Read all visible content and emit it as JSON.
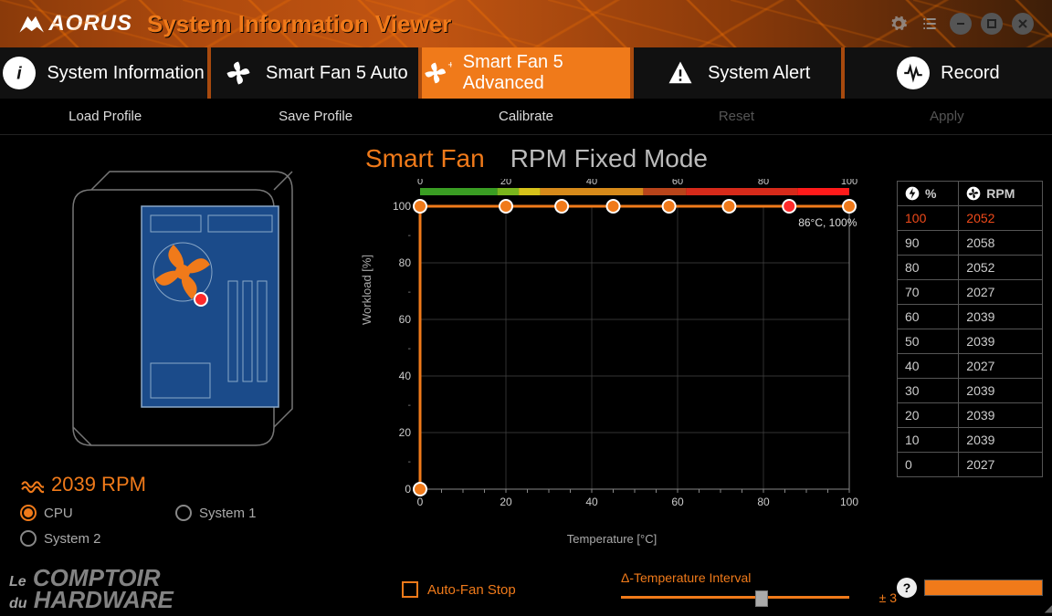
{
  "app": {
    "brand": "AORUS",
    "title": "System Information Viewer"
  },
  "header_icons": [
    "settings-icon",
    "list-icon",
    "minimize-icon",
    "maximize-icon",
    "close-icon"
  ],
  "tabs": [
    {
      "id": "sysinfo",
      "label": "System Information",
      "icon": "info-icon"
    },
    {
      "id": "smartfan-auto",
      "label": "Smart Fan 5 Auto",
      "icon": "fan-icon"
    },
    {
      "id": "smartfan-adv",
      "label": "Smart Fan 5 Advanced",
      "icon": "fan-plus-icon",
      "active": true
    },
    {
      "id": "sysalert",
      "label": "System Alert",
      "icon": "alert-icon"
    },
    {
      "id": "record",
      "label": "Record",
      "icon": "record-icon"
    }
  ],
  "subbar": [
    {
      "label": "Load Profile",
      "disabled": false
    },
    {
      "label": "Save Profile",
      "disabled": false
    },
    {
      "label": "Calibrate",
      "disabled": false
    },
    {
      "label": "Reset",
      "disabled": true
    },
    {
      "label": "Apply",
      "disabled": true
    }
  ],
  "fan": {
    "current_rpm_text": "2039 RPM",
    "sensors": [
      {
        "label": "CPU",
        "selected": true
      },
      {
        "label": "System 1",
        "selected": false
      },
      {
        "label": "System 2",
        "selected": false
      }
    ]
  },
  "modes": {
    "smart_label": "Smart Fan",
    "fixed_label": "RPM Fixed Mode",
    "active": "smart",
    "colors": {
      "active": "#f07a1a",
      "inactive": "#bbbbbb"
    }
  },
  "chart": {
    "type": "line",
    "xlabel": "Temperature [°C]",
    "ylabel": "Workload [%]",
    "xlim": [
      0,
      100
    ],
    "xtick_step": 20,
    "ylim": [
      0,
      100
    ],
    "ytick_step": 20,
    "grid_color": "#444444",
    "axis_color": "#888888",
    "line_color": "#f07a1a",
    "line_width": 3,
    "node_radius": 7,
    "node_fill": "#f07a1a",
    "node_stroke": "#ffffff",
    "highlight_fill": "#ff2a2a",
    "points": [
      {
        "x": 0,
        "y": 0
      },
      {
        "x": 0,
        "y": 100
      },
      {
        "x": 20,
        "y": 100
      },
      {
        "x": 33,
        "y": 100
      },
      {
        "x": 45,
        "y": 100
      },
      {
        "x": 58,
        "y": 100
      },
      {
        "x": 72,
        "y": 100
      },
      {
        "x": 86,
        "y": 100,
        "highlight": true
      },
      {
        "x": 100,
        "y": 100
      }
    ],
    "readout": "86°C, 100%",
    "heat_bar": [
      {
        "from": 0,
        "to": 18,
        "color": "#3a9d23"
      },
      {
        "from": 18,
        "to": 23,
        "color": "#7ab51d"
      },
      {
        "from": 23,
        "to": 28,
        "color": "#d6c21a"
      },
      {
        "from": 28,
        "to": 52,
        "color": "#d68a1a"
      },
      {
        "from": 52,
        "to": 62,
        "color": "#b8441a"
      },
      {
        "from": 62,
        "to": 88,
        "color": "#d62a1a"
      },
      {
        "from": 88,
        "to": 100,
        "color": "#ff1a1a"
      }
    ]
  },
  "rpm_table": {
    "headers": {
      "pct": "%",
      "rpm": "RPM"
    },
    "rows": [
      {
        "pct": "100",
        "rpm": "2052",
        "highlight": true
      },
      {
        "pct": "90",
        "rpm": "2058"
      },
      {
        "pct": "80",
        "rpm": "2052"
      },
      {
        "pct": "70",
        "rpm": "2027"
      },
      {
        "pct": "60",
        "rpm": "2039"
      },
      {
        "pct": "50",
        "rpm": "2039"
      },
      {
        "pct": "40",
        "rpm": "2027"
      },
      {
        "pct": "30",
        "rpm": "2039"
      },
      {
        "pct": "20",
        "rpm": "2039"
      },
      {
        "pct": "10",
        "rpm": "2039"
      },
      {
        "pct": "0",
        "rpm": "2027"
      }
    ]
  },
  "autofan": {
    "label": "Auto-Fan Stop",
    "checked": false
  },
  "delta": {
    "label": "Δ-Temperature Interval",
    "value_text": "± 3",
    "slider_pos_pct": 55
  },
  "watermark": {
    "line1": "Le",
    "line2": "COMPTOIR",
    "line3": "du",
    "line4": "HARDWARE"
  },
  "colors": {
    "accent": "#f07a1a",
    "accent_dark": "#a84a0e",
    "case_fill": "#1b4b8a",
    "case_stroke": "#8aa8c8"
  }
}
